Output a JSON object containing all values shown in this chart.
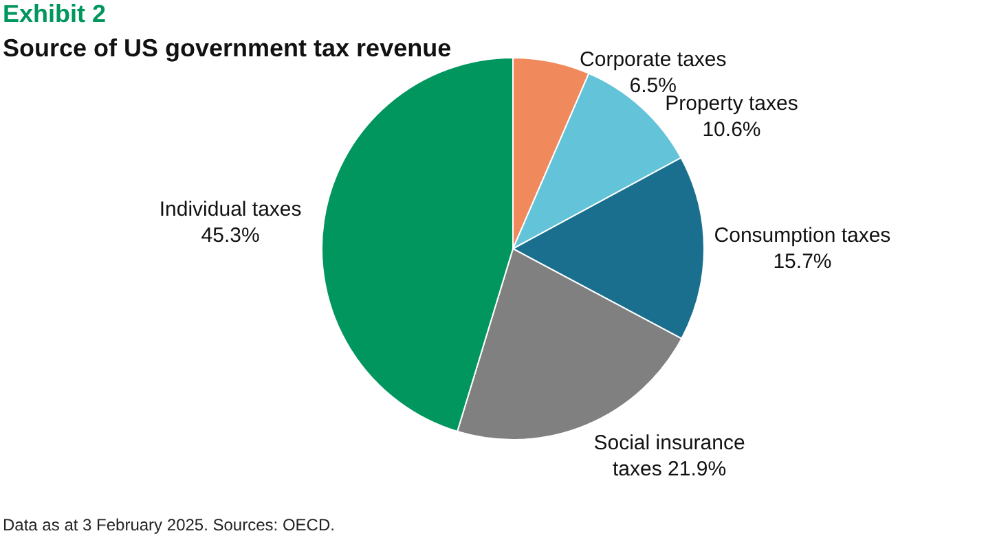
{
  "chart_data": {
    "type": "pie",
    "title": "Exhibit 2",
    "subtitle": "Source of US government tax revenue",
    "categories": [
      "Corporate taxes",
      "Property taxes",
      "Consumption taxes",
      "Social insurance taxes",
      "Individual taxes"
    ],
    "values": [
      6.5,
      10.6,
      15.7,
      21.9,
      45.3
    ],
    "value_labels": [
      "6.5%",
      "10.6%",
      "15.7%",
      "21.9%",
      "45.3%"
    ],
    "colors": [
      "#f08a5d",
      "#62c3d9",
      "#1a6f8f",
      "#808080",
      "#00965e"
    ],
    "annotations": [
      "Data as at 3 February 2025. Sources: OECD."
    ]
  }
}
